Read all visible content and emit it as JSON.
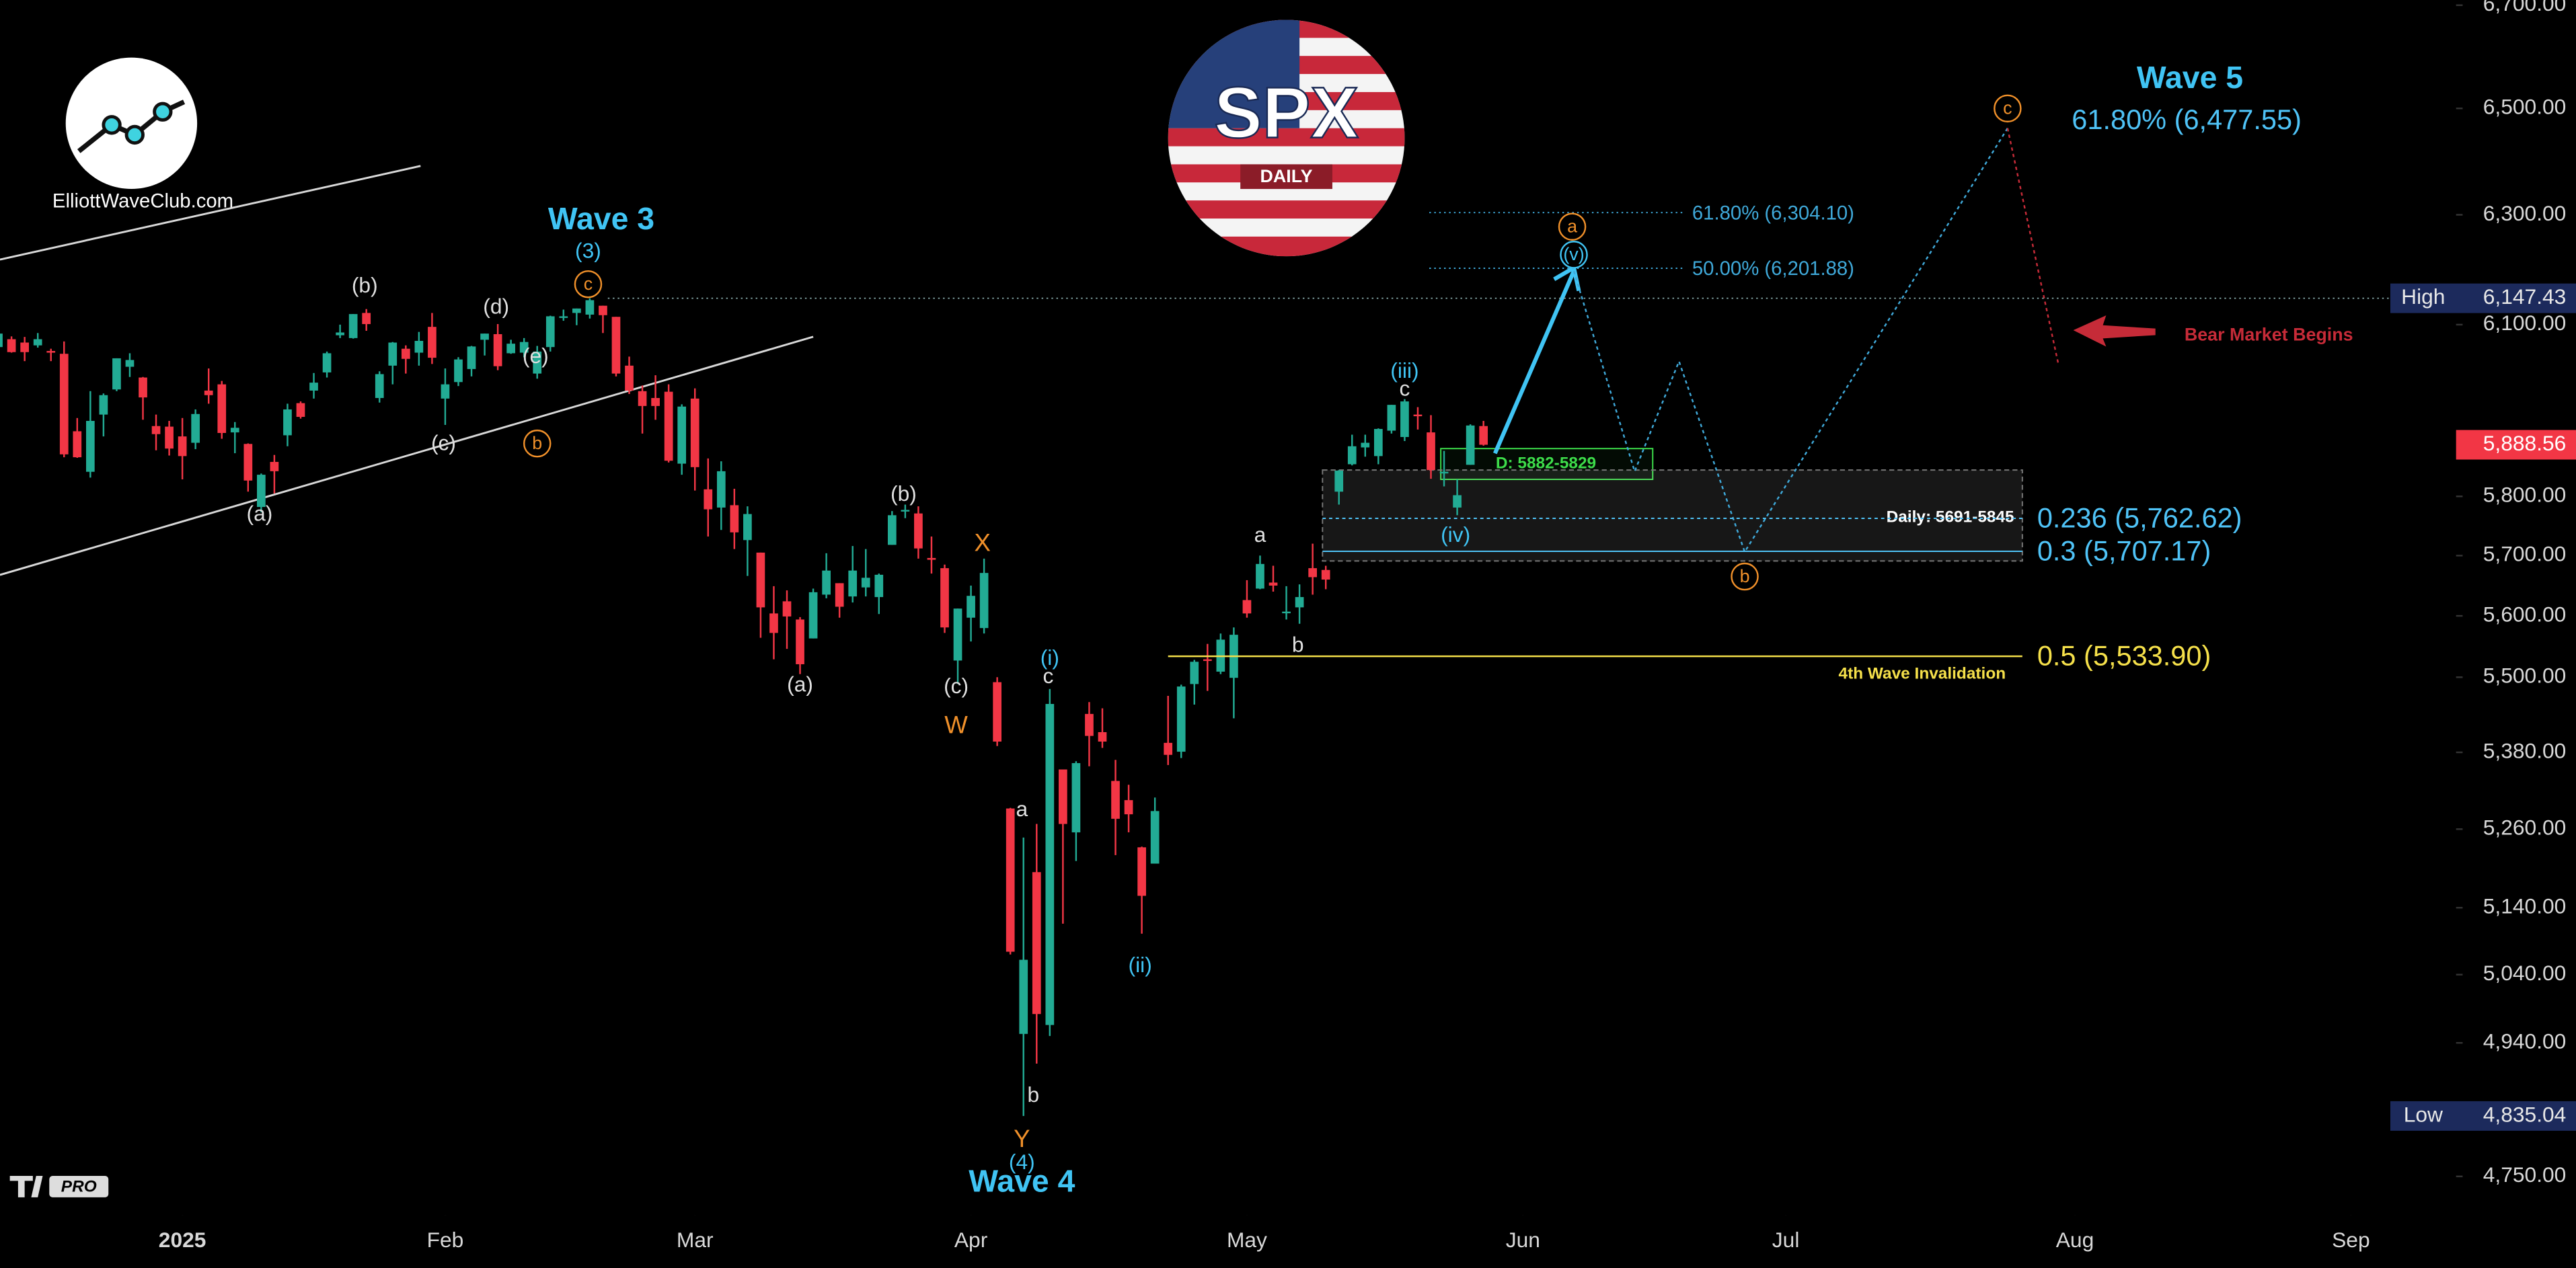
{
  "chart_data": {
    "type": "candlestick",
    "x": [
      -14,
      -13,
      -12,
      -11,
      -10,
      -9,
      -8,
      -7,
      -6,
      -5,
      -4,
      -3,
      -2,
      -1,
      0,
      1,
      2,
      3,
      4,
      5,
      6,
      7,
      8,
      9,
      10,
      11,
      12,
      13,
      14,
      15,
      16,
      17,
      18,
      19,
      20,
      21,
      22,
      23,
      24,
      25,
      26,
      27,
      28,
      29,
      30,
      31,
      32,
      33,
      34,
      35,
      36,
      37,
      38,
      39,
      40,
      41,
      42,
      43,
      44,
      45,
      46,
      47,
      48,
      49,
      50,
      51,
      52,
      53,
      54,
      55,
      56,
      57,
      58,
      59,
      60,
      61,
      62,
      63,
      64,
      65,
      66,
      67,
      68,
      69,
      70,
      71,
      72,
      73,
      74,
      75,
      76,
      77,
      78,
      79,
      80,
      81,
      82,
      83,
      84,
      85,
      86,
      87,
      88,
      89,
      90,
      91,
      92,
      93,
      94,
      95,
      96,
      97,
      98,
      99
    ],
    "series": [
      {
        "up_color": "#22ab94",
        "down_color": "#f23645",
        "open": [
          6060,
          6074,
          6068,
          6063,
          6053,
          6048,
          5912,
          5842,
          5941,
          5985,
          6025,
          6006,
          5921,
          5920,
          5903,
          5892,
          5983,
          5994,
          5910,
          5890,
          5782,
          5859,
          5905,
          5961,
          5983,
          6015,
          6081,
          6076,
          6121,
          5970,
          6027,
          6057,
          6050,
          6096,
          5969,
          5998,
          6021,
          6073,
          6083,
          6049,
          6050,
          6013,
          6060,
          6115,
          6121,
          6118,
          6134,
          6114,
          6027,
          5982,
          5970,
          5981,
          5856,
          5969,
          5812,
          5781,
          5785,
          5726,
          5705,
          5604,
          5624,
          5594,
          5563,
          5635,
          5654,
          5632,
          5647,
          5631,
          5718,
          5775,
          5771,
          5696,
          5679,
          5527,
          5597,
          5580,
          5492,
          5292,
          4953,
          5194,
          4966,
          5353,
          5255,
          5441,
          5412,
          5335,
          5305,
          5232,
          5207,
          5395,
          5381,
          5489,
          5529,
          5509,
          5499,
          5626,
          5645,
          5655,
          5605,
          5614,
          5679,
          5676,
          5808,
          5855,
          5884,
          5869,
          5913,
          5902,
          5941,
          5910,
          5842,
          5781,
          5854,
          5921
        ],
        "high": [
          6092,
          6079,
          6078,
          6085,
          6057,
          6070,
          5935,
          5982,
          5978,
          6040,
          6049,
          6007,
          5941,
          5930,
          5935,
          5950,
          6022,
          6000,
          5928,
          5891,
          5839,
          5871,
          5960,
          5964,
          6014,
          6052,
          6100,
          6119,
          6128,
          6017,
          6069,
          6063,
          6087,
          6121,
          6022,
          6042,
          6062,
          6084,
          6101,
          6073,
          6076,
          6062,
          6116,
          6127,
          6129,
          6147.43,
          6134,
          6114,
          6043,
          5992,
          6010,
          5994,
          5959,
          5987,
          5865,
          5860,
          5813,
          5783,
          5705,
          5649,
          5642,
          5598,
          5645,
          5704,
          5654,
          5716,
          5711,
          5670,
          5775,
          5786,
          5783,
          5732,
          5685,
          5612,
          5650,
          5695,
          5500,
          5293,
          5247,
          5268,
          5481,
          5353,
          5366,
          5460,
          5450,
          5368,
          5329,
          5233,
          5309,
          5470,
          5488,
          5528,
          5554,
          5571,
          5581,
          5659,
          5700,
          5683,
          5649,
          5652,
          5720,
          5683,
          5845,
          5906,
          5906,
          5917,
          5958,
          5968,
          5954,
          5940,
          5878,
          5829,
          5924,
          5930
        ],
        "low": [
          6060,
          6050,
          6035,
          6059,
          6035,
          5867,
          5866,
          5832,
          5903,
          5982,
          6007,
          5932,
          5879,
          5870,
          5829,
          5881,
          5960,
          5899,
          5874,
          5808,
          5773,
          5805,
          5886,
          5934,
          5969,
          6006,
          6076,
          6075,
          6089,
          5962,
          5994,
          6013,
          6027,
          6030,
          5923,
          5991,
          6008,
          6045,
          6019,
          6048,
          6042,
          6004,
          6052,
          6107,
          6099,
          6111,
          6085,
          6008,
          5977,
          5908,
          5932,
          5858,
          5837,
          5810,
          5732,
          5743,
          5711,
          5666,
          5564,
          5529,
          5546,
          5505,
          5563,
          5629,
          5597,
          5622,
          5632,
          5603,
          5718,
          5763,
          5695,
          5670,
          5572,
          5489,
          5558,
          5571,
          5390,
          5070,
          4835.04,
          4910,
          4950,
          5116,
          5211,
          5358,
          5387,
          5220,
          5255,
          5101,
          5207,
          5360,
          5371,
          5456,
          5478,
          5505,
          5434,
          5597,
          5644,
          5640,
          5594,
          5587,
          5635,
          5644,
          5786,
          5853,
          5868,
          5855,
          5908,
          5895,
          5915,
          5830,
          5817,
          5768,
          5854,
          5887
        ],
        "close": [
          6084,
          6051,
          6051,
          6074,
          6050,
          5872,
          5867,
          5930,
          5975,
          6040,
          6037,
          5971,
          5907,
          5882,
          5869,
          5942,
          5975,
          5909,
          5918,
          5827,
          5837,
          5843,
          5950,
          5937,
          5997,
          6049,
          6086,
          6119,
          6101,
          6012,
          6068,
          6039,
          6071,
          6041,
          5994,
          6038,
          6061,
          6084,
          6026,
          6066,
          6069,
          6052,
          6115,
          6115,
          6129,
          6144,
          6117,
          6013,
          5983,
          5956,
          5956,
          5861,
          5955,
          5850,
          5778,
          5843,
          5739,
          5770,
          5614,
          5572,
          5599,
          5521,
          5639,
          5675,
          5615,
          5675,
          5663,
          5668,
          5768,
          5777,
          5712,
          5693,
          5581,
          5612,
          5633,
          5671,
          5397,
          5074,
          5062,
          4982,
          5457,
          5268,
          5363,
          5406,
          5397,
          5276,
          5283,
          5158,
          5288,
          5376,
          5485,
          5525,
          5528,
          5561,
          5569,
          5604,
          5686,
          5650,
          5607,
          5631,
          5664,
          5660,
          5844,
          5886,
          5892,
          5916,
          5958,
          5964,
          5940,
          5845,
          5842,
          5802,
          5922,
          5888.56
        ]
      }
    ],
    "log_scale": true,
    "ylim": [
      4696,
      6710
    ],
    "yticks": [
      {
        "value": 4750,
        "label": "4,750.00"
      },
      {
        "value": 4940,
        "label": "4,940.00"
      },
      {
        "value": 5040,
        "label": "5,040.00"
      },
      {
        "value": 5140,
        "label": "5,140.00"
      },
      {
        "value": 5260,
        "label": "5,260.00"
      },
      {
        "value": 5380,
        "label": "5,380.00"
      },
      {
        "value": 5500,
        "label": "5,500.00"
      },
      {
        "value": 5600,
        "label": "5,600.00"
      },
      {
        "value": 5700,
        "label": "5,700.00"
      },
      {
        "value": 5800,
        "label": "5,800.00"
      },
      {
        "value": 6100,
        "label": "6,100.00"
      },
      {
        "value": 6300,
        "label": "6,300.00"
      },
      {
        "value": 6500,
        "label": "6,500.00"
      },
      {
        "value": 6700,
        "label": "6,700.00"
      }
    ],
    "xlim": [
      -13.875,
      173
    ],
    "xticks": [
      {
        "value": 0,
        "label": "2025"
      },
      {
        "value": 20,
        "label": "Feb"
      },
      {
        "value": 39,
        "label": "Mar"
      },
      {
        "value": 60,
        "label": "Apr"
      },
      {
        "value": 81,
        "label": "May"
      },
      {
        "value": 102,
        "label": "Jun"
      },
      {
        "value": 122,
        "label": "Jul"
      },
      {
        "value": 144,
        "label": "Aug"
      },
      {
        "value": 165,
        "label": "Sep"
      }
    ],
    "price_markers": {
      "names": [
        "High",
        "Low"
      ],
      "values": [
        6147.43,
        4835.04
      ],
      "value_labels": [
        "6,147.43",
        "4,835.04"
      ]
    },
    "last_price": {
      "value": 5888.56,
      "value_label": "5,888.56",
      "color": "#f23645"
    },
    "fib_levels": [
      {
        "label": "61.80% (6,304.10)",
        "value": 6304.1,
        "color": "#3fa8d8"
      },
      {
        "label": "50.00% (6,201.88)",
        "value": 6201.88,
        "color": "#3fa8d8"
      },
      {
        "label": "0.236 (5,762.62)",
        "value": 5762.62,
        "color": "#4fc3f7"
      },
      {
        "label": "0.3 (5,707.17)",
        "value": 5707.17,
        "color": "#4fc3f7"
      },
      {
        "label": "0.5 (5,533.90)",
        "value": 5533.9,
        "color": "#f5e04a"
      },
      {
        "label": "61.80% (6,477.55)",
        "value": 6477.55,
        "color": "#4fc3f7"
      }
    ],
    "zones": [
      {
        "label": "D: 5882-5829",
        "range": [
          5829,
          5882
        ],
        "color": "#3ddc4a"
      },
      {
        "label": "Daily: 5691-5845",
        "range": [
          5691,
          5845
        ],
        "color": "#ffffff"
      }
    ],
    "annotations": [
      {
        "text": "Wave 3",
        "color": "#40c4f4"
      },
      {
        "text": "(3)",
        "color": "#40c4f4"
      },
      {
        "text": "c",
        "color": "#f0902a"
      },
      {
        "text": "(b)",
        "color": "#e0e0e0"
      },
      {
        "text": "(d)",
        "color": "#e0e0e0"
      },
      {
        "text": "(e)",
        "color": "#e0e0e0"
      },
      {
        "text": "b",
        "color": "#f0902a"
      },
      {
        "text": "(c)",
        "color": "#e0e0e0"
      },
      {
        "text": "(a)",
        "color": "#e0e0e0"
      },
      {
        "text": "(b)",
        "color": "#e0e0e0"
      },
      {
        "text": "X",
        "color": "#f0902a"
      },
      {
        "text": "(a)",
        "color": "#e0e0e0"
      },
      {
        "text": "(c)",
        "color": "#e0e0e0"
      },
      {
        "text": "W",
        "color": "#f0902a"
      },
      {
        "text": "(i)",
        "color": "#40c4f4"
      },
      {
        "text": "c",
        "color": "#e0e0e0"
      },
      {
        "text": "a",
        "color": "#e0e0e0"
      },
      {
        "text": "b",
        "color": "#e0e0e0"
      },
      {
        "text": "Y",
        "color": "#f0902a"
      },
      {
        "text": "(4)",
        "color": "#40c4f4"
      },
      {
        "text": "Wave 4",
        "color": "#40c4f4"
      },
      {
        "text": "(ii)",
        "color": "#40c4f4"
      },
      {
        "text": "a",
        "color": "#e0e0e0"
      },
      {
        "text": "b",
        "color": "#e0e0e0"
      },
      {
        "text": "(iii)",
        "color": "#40c4f4"
      },
      {
        "text": "c",
        "color": "#e0e0e0"
      },
      {
        "text": "(iv)",
        "color": "#40c4f4"
      },
      {
        "text": "a",
        "color": "#f0902a"
      },
      {
        "text": "(v)",
        "color": "#40c4f4"
      },
      {
        "text": "b",
        "color": "#f0902a"
      },
      {
        "text": "c",
        "color": "#f0902a"
      },
      {
        "text": "Wave 5",
        "color": "#40c4f4"
      },
      {
        "text": "Bear Market Begins",
        "color": "#c62b38"
      },
      {
        "text": "4th Wave Invalidation",
        "color": "#f5e04a"
      }
    ]
  },
  "branding": {
    "symbol": "SPX",
    "timeframe": "DAILY",
    "site": "ElliottWaveClub.com",
    "platform": "PRO"
  }
}
